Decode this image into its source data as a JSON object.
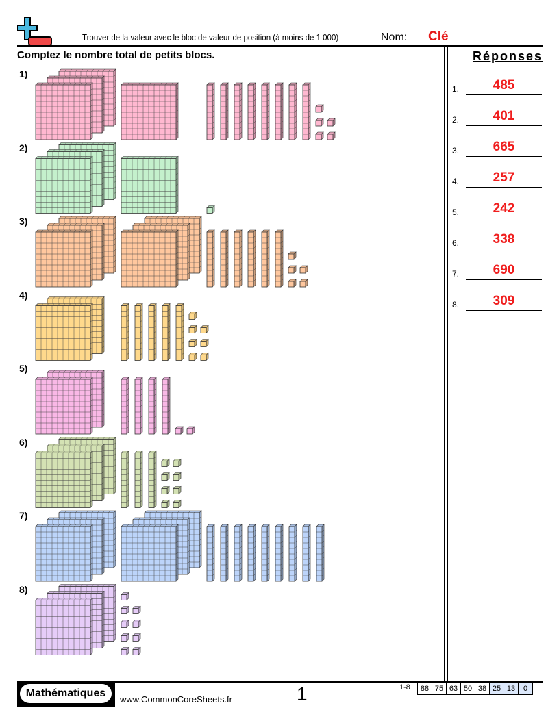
{
  "header": {
    "title": "Trouver de la valeur avec le bloc de valeur de position (à moins de 1 000)",
    "name_label": "Nom:",
    "name_value": "Clé",
    "logo_icon": "plus-minus-logo-icon",
    "instructions": "Comptez le nombre total de petits blocs."
  },
  "answers": {
    "title": "Réponses",
    "items": [
      {
        "num": "1.",
        "value": "485"
      },
      {
        "num": "2.",
        "value": "401"
      },
      {
        "num": "3.",
        "value": "665"
      },
      {
        "num": "4.",
        "value": "257"
      },
      {
        "num": "5.",
        "value": "242"
      },
      {
        "num": "6.",
        "value": "338"
      },
      {
        "num": "7.",
        "value": "690"
      },
      {
        "num": "8.",
        "value": "309"
      }
    ]
  },
  "problems": [
    {
      "label": "1)",
      "hundred_groups": [
        3,
        1
      ],
      "tens": 8,
      "ones": 5,
      "color": "#ffb8d0"
    },
    {
      "label": "2)",
      "hundred_groups": [
        3,
        1
      ],
      "tens": 0,
      "ones": 1,
      "color": "#c4f0cc"
    },
    {
      "label": "3)",
      "hundred_groups": [
        3,
        3
      ],
      "tens": 6,
      "ones": 5,
      "color": "#ffc79e"
    },
    {
      "label": "4)",
      "hundred_groups": [
        2
      ],
      "tens": 5,
      "ones": 7,
      "color": "#ffd98c"
    },
    {
      "label": "5)",
      "hundred_groups": [
        2
      ],
      "tens": 4,
      "ones": 2,
      "color": "#f9b8e6"
    },
    {
      "label": "6)",
      "hundred_groups": [
        3
      ],
      "tens": 3,
      "ones": 8,
      "color": "#d4e2b4"
    },
    {
      "label": "7)",
      "hundred_groups": [
        3,
        3
      ],
      "tens": 9,
      "ones": 0,
      "color": "#bcd4fa"
    },
    {
      "label": "8)",
      "hundred_groups": [
        3
      ],
      "tens": 0,
      "ones": 9,
      "color": "#e6ccf8"
    }
  ],
  "footer": {
    "brand": "Mathématiques",
    "site": "www.CommonCoreSheets.fr",
    "page": "1",
    "range": "1-8",
    "scores": [
      "88",
      "75",
      "63",
      "50",
      "38",
      "25",
      "13",
      "0"
    ],
    "highlighted_scores": [
      "25",
      "13",
      "0"
    ]
  }
}
